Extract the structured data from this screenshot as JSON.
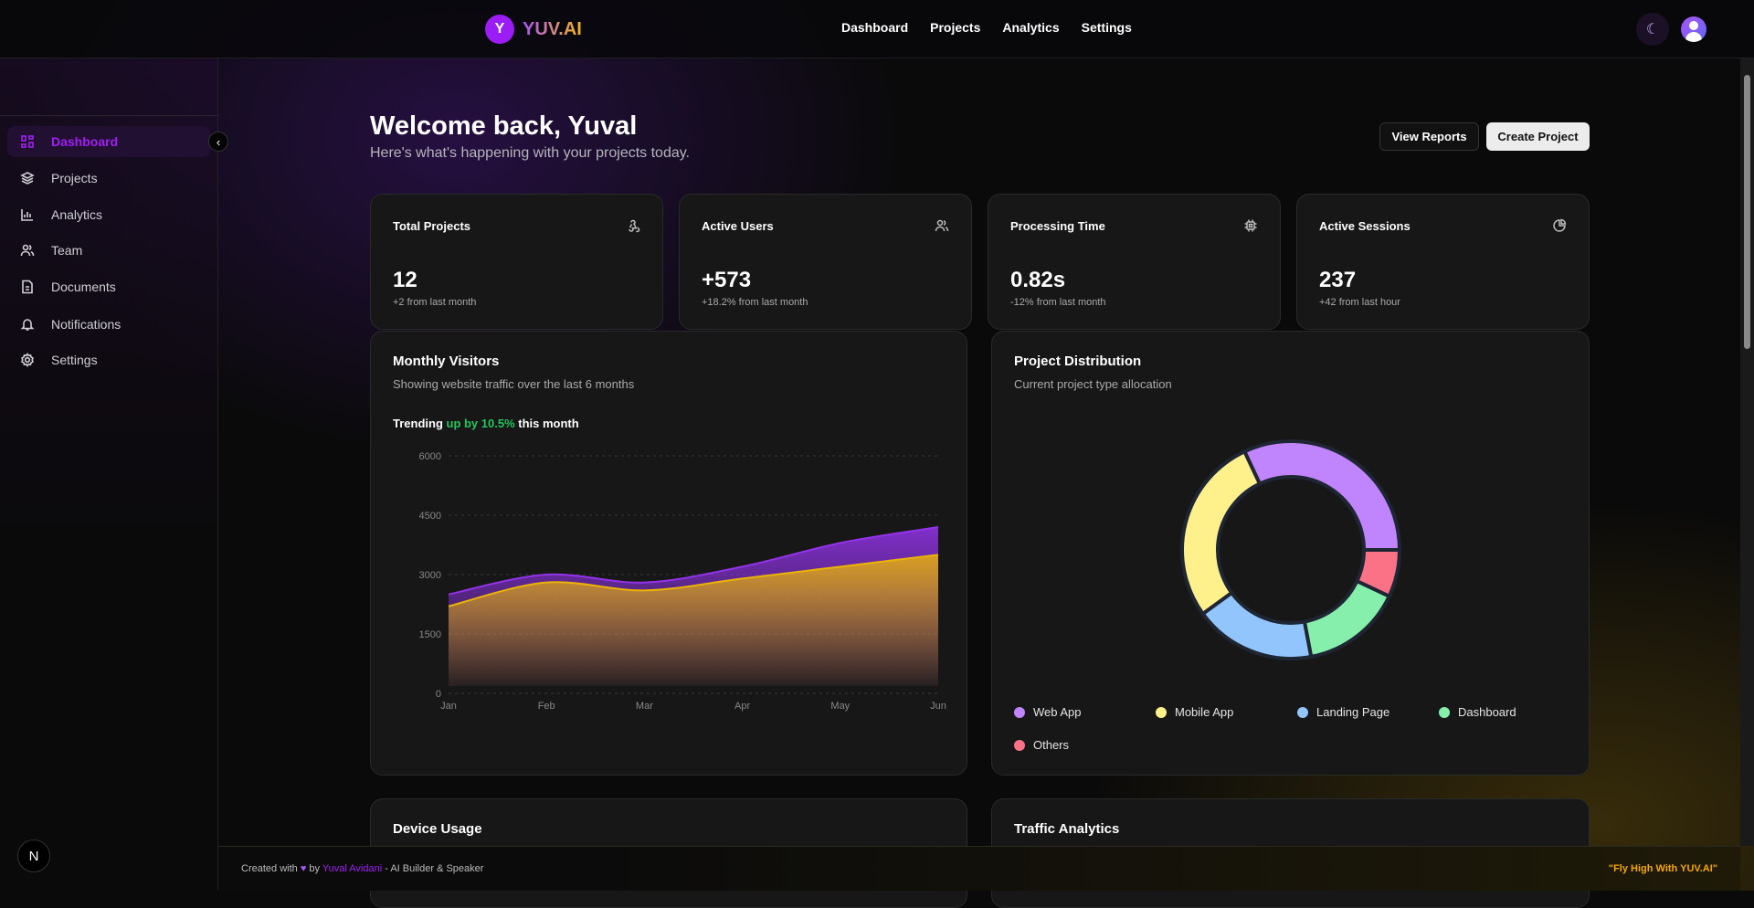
{
  "header": {
    "logo_letter": "Y",
    "brand": "YUV.AI",
    "nav": [
      "Dashboard",
      "Projects",
      "Analytics",
      "Settings"
    ]
  },
  "sidebar": {
    "items": [
      {
        "label": "Dashboard",
        "icon": "dashboard-icon"
      },
      {
        "label": "Projects",
        "icon": "layers-icon"
      },
      {
        "label": "Analytics",
        "icon": "bar-chart-icon"
      },
      {
        "label": "Team",
        "icon": "users-icon"
      },
      {
        "label": "Documents",
        "icon": "file-text-icon"
      },
      {
        "label": "Notifications",
        "icon": "bell-icon"
      },
      {
        "label": "Settings",
        "icon": "gear-icon"
      }
    ],
    "next_badge": "N"
  },
  "page": {
    "title": "Welcome back, Yuval",
    "subtitle": "Here's what's happening with your projects today.",
    "view_reports": "View Reports",
    "create_project": "Create Project"
  },
  "stats": [
    {
      "title": "Total Projects",
      "value": "12",
      "delta": "+2 from last month",
      "icon": "webhook-icon"
    },
    {
      "title": "Active Users",
      "value": "+573",
      "delta": "+18.2% from last month",
      "icon": "users-icon"
    },
    {
      "title": "Processing Time",
      "value": "0.82s",
      "delta": "-12% from last month",
      "icon": "cpu-icon"
    },
    {
      "title": "Active Sessions",
      "value": "237",
      "delta": "+42 from last hour",
      "icon": "pie-chart-icon"
    }
  ],
  "visitors": {
    "title": "Monthly Visitors",
    "subtitle": "Showing website traffic over the last 6 months",
    "trend_a": "Trending ",
    "trend_b": "up by 10.5%",
    "trend_c": " this month"
  },
  "distribution": {
    "title": "Project Distribution",
    "subtitle": "Current project type allocation"
  },
  "bottom": {
    "device": "Device Usage",
    "traffic": "Traffic Analytics"
  },
  "footer": {
    "a": "Created with",
    "b": "by",
    "author": "Yuval Avidani",
    "c": "- AI Builder & Speaker",
    "quote": "\"Fly High With YUV.AI\""
  },
  "chart_data": [
    {
      "type": "area",
      "categories": [
        "Jan",
        "Feb",
        "Mar",
        "Apr",
        "May",
        "Jun"
      ],
      "ylim": [
        0,
        6000
      ],
      "yticks": [
        "0",
        "1500",
        "3000",
        "4500",
        "6000"
      ],
      "grid": true,
      "series": [
        {
          "values": [
            2500,
            3000,
            2800,
            3200,
            3800,
            4200
          ],
          "color": "#9333ea"
        },
        {
          "values": [
            2200,
            2800,
            2600,
            2900,
            3200,
            3500
          ],
          "color": "#eab308"
        }
      ]
    },
    {
      "type": "pie",
      "labels": [
        "Web App",
        "Mobile App",
        "Landing Page",
        "Dashboard",
        "Others"
      ],
      "values": [
        32,
        28,
        18,
        15,
        7
      ],
      "colors": [
        "#c084fc",
        "#fef08a",
        "#93c5fd",
        "#86efac",
        "#fb7185"
      ]
    }
  ]
}
